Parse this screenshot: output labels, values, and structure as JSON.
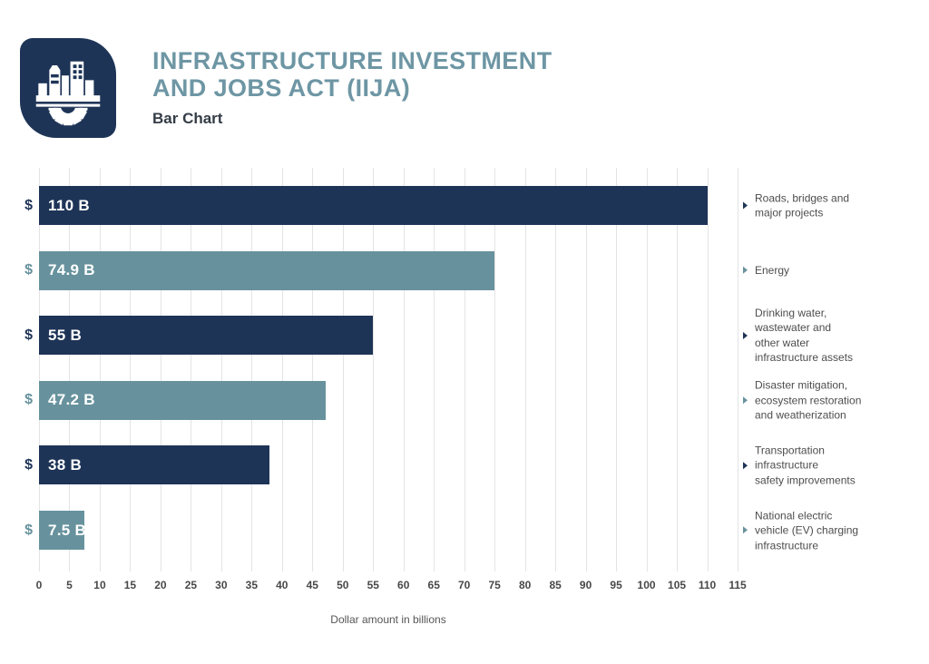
{
  "header": {
    "title": "INFRASTRUCTURE INVESTMENT\nAND JOBS ACT (IIJA)",
    "subtitle": "Bar Chart",
    "logo_icon": "city-gear-icon"
  },
  "colors": {
    "navy": "#1E3457",
    "teal": "#67929D",
    "title_text": "#6E96A4",
    "subtitle_text": "#343C46",
    "gridline": "#E4E4E4",
    "tick_text": "#484848",
    "category_text": "#4D4D4D",
    "axis_label_text": "#555555",
    "bar_value_text": "#FFFFFF",
    "background": "#FFFFFF"
  },
  "chart_data": {
    "type": "bar",
    "orientation": "horizontal",
    "title": "Infrastructure Investment and Jobs Act (IIJA)",
    "subtitle": "Bar Chart",
    "xlabel": "Dollar amount in billions",
    "xlim": [
      0,
      115
    ],
    "xticks": [
      0,
      5,
      10,
      15,
      20,
      25,
      30,
      35,
      40,
      45,
      50,
      55,
      60,
      65,
      70,
      75,
      80,
      85,
      90,
      95,
      100,
      105,
      110,
      115
    ],
    "grid": true,
    "currency_prefix": "$",
    "categories": [
      "Roads, bridges and\nmajor projects",
      "Energy",
      "Drinking water,\nwastewater and\nother water\ninfrastructure assets",
      "Disaster mitigation,\necosystem restoration\nand weatherization",
      "Transportation\ninfrastructure\nsafety improvements",
      "National electric\nvehicle (EV) charging\ninfrastructure"
    ],
    "values": [
      110,
      74.9,
      55,
      47.2,
      38,
      7.5
    ],
    "value_labels": [
      "110 B",
      "74.9 B",
      "55 B",
      "47.2 B",
      "38 B",
      "7.5 B"
    ],
    "bar_colors": [
      "#1E3457",
      "#67929D",
      "#1E3457",
      "#67929D",
      "#1E3457",
      "#67929D"
    ]
  }
}
